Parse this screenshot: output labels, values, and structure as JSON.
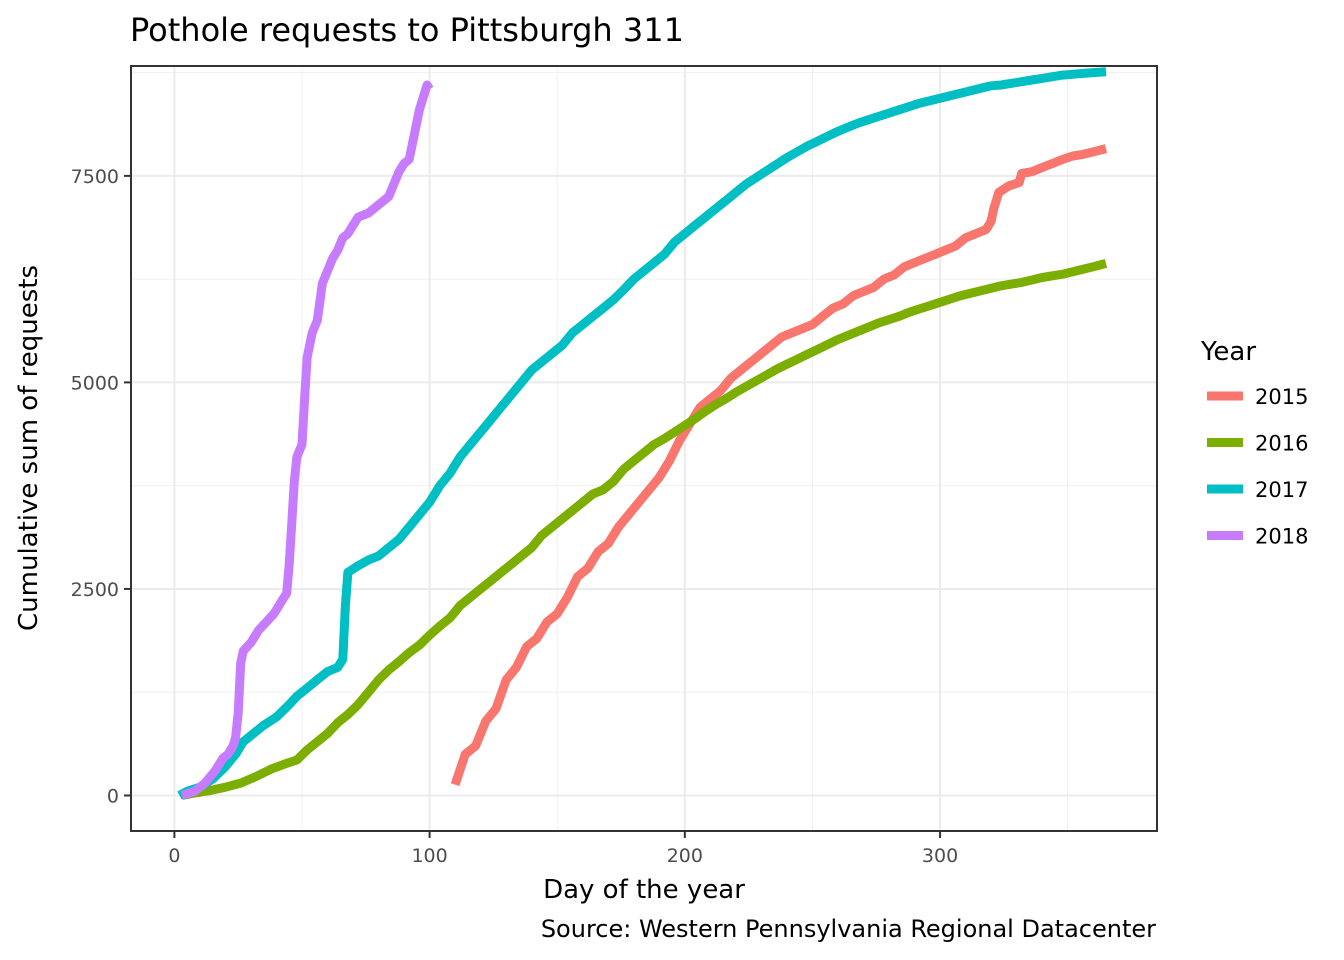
{
  "chart_data": {
    "type": "line",
    "title": "Pothole requests to Pittsburgh 311",
    "xlabel": "Day of the year",
    "ylabel": "Cumulative sum of requests",
    "caption": "Source: Western Pennsylvania Regional Datacenter",
    "xlim": [
      -17,
      385
    ],
    "ylim": [
      -430,
      8830
    ],
    "x_ticks": [
      0,
      100,
      200,
      300
    ],
    "y_ticks": [
      0,
      2500,
      5000,
      7500
    ],
    "x_tick_labels": [
      "0",
      "100",
      "200",
      "300"
    ],
    "y_tick_labels": [
      "0",
      "2500",
      "5000",
      "7500"
    ],
    "grid": true,
    "legend": {
      "title": "Year",
      "position": "right"
    },
    "series": [
      {
        "name": "2015",
        "color": "#F8766D",
        "points": [
          [
            110,
            130
          ],
          [
            114,
            500
          ],
          [
            118,
            600
          ],
          [
            122,
            900
          ],
          [
            126,
            1050
          ],
          [
            130,
            1400
          ],
          [
            134,
            1550
          ],
          [
            138,
            1800
          ],
          [
            142,
            1900
          ],
          [
            146,
            2100
          ],
          [
            150,
            2200
          ],
          [
            154,
            2400
          ],
          [
            158,
            2650
          ],
          [
            162,
            2750
          ],
          [
            166,
            2950
          ],
          [
            170,
            3050
          ],
          [
            174,
            3250
          ],
          [
            178,
            3400
          ],
          [
            182,
            3550
          ],
          [
            186,
            3700
          ],
          [
            190,
            3850
          ],
          [
            194,
            4050
          ],
          [
            198,
            4300
          ],
          [
            202,
            4500
          ],
          [
            206,
            4700
          ],
          [
            210,
            4800
          ],
          [
            214,
            4900
          ],
          [
            218,
            5050
          ],
          [
            222,
            5150
          ],
          [
            226,
            5250
          ],
          [
            230,
            5350
          ],
          [
            234,
            5450
          ],
          [
            238,
            5550
          ],
          [
            242,
            5600
          ],
          [
            246,
            5650
          ],
          [
            250,
            5700
          ],
          [
            254,
            5800
          ],
          [
            258,
            5900
          ],
          [
            262,
            5950
          ],
          [
            266,
            6050
          ],
          [
            270,
            6100
          ],
          [
            274,
            6150
          ],
          [
            278,
            6250
          ],
          [
            282,
            6300
          ],
          [
            286,
            6400
          ],
          [
            290,
            6450
          ],
          [
            294,
            6500
          ],
          [
            298,
            6550
          ],
          [
            302,
            6600
          ],
          [
            306,
            6650
          ],
          [
            310,
            6750
          ],
          [
            314,
            6800
          ],
          [
            318,
            6850
          ],
          [
            320,
            6950
          ],
          [
            321,
            7100
          ],
          [
            323,
            7300
          ],
          [
            327,
            7380
          ],
          [
            331,
            7420
          ],
          [
            332,
            7530
          ],
          [
            336,
            7550
          ],
          [
            340,
            7600
          ],
          [
            344,
            7650
          ],
          [
            348,
            7700
          ],
          [
            352,
            7740
          ],
          [
            356,
            7760
          ],
          [
            360,
            7790
          ],
          [
            365,
            7830
          ]
        ]
      },
      {
        "name": "2016",
        "color": "#7CAE00",
        "points": [
          [
            3,
            0
          ],
          [
            8,
            30
          ],
          [
            14,
            60
          ],
          [
            20,
            100
          ],
          [
            26,
            150
          ],
          [
            32,
            230
          ],
          [
            38,
            320
          ],
          [
            44,
            390
          ],
          [
            48,
            430
          ],
          [
            52,
            550
          ],
          [
            56,
            650
          ],
          [
            60,
            750
          ],
          [
            64,
            880
          ],
          [
            68,
            980
          ],
          [
            72,
            1100
          ],
          [
            76,
            1250
          ],
          [
            80,
            1400
          ],
          [
            84,
            1520
          ],
          [
            88,
            1620
          ],
          [
            92,
            1730
          ],
          [
            96,
            1820
          ],
          [
            100,
            1940
          ],
          [
            104,
            2050
          ],
          [
            108,
            2150
          ],
          [
            112,
            2300
          ],
          [
            116,
            2400
          ],
          [
            120,
            2500
          ],
          [
            124,
            2600
          ],
          [
            128,
            2700
          ],
          [
            132,
            2800
          ],
          [
            136,
            2900
          ],
          [
            140,
            3000
          ],
          [
            144,
            3150
          ],
          [
            148,
            3250
          ],
          [
            152,
            3350
          ],
          [
            156,
            3450
          ],
          [
            160,
            3550
          ],
          [
            164,
            3650
          ],
          [
            168,
            3700
          ],
          [
            172,
            3800
          ],
          [
            176,
            3950
          ],
          [
            180,
            4050
          ],
          [
            184,
            4150
          ],
          [
            188,
            4250
          ],
          [
            192,
            4320
          ],
          [
            196,
            4400
          ],
          [
            200,
            4480
          ],
          [
            204,
            4560
          ],
          [
            208,
            4650
          ],
          [
            212,
            4730
          ],
          [
            216,
            4800
          ],
          [
            220,
            4880
          ],
          [
            224,
            4950
          ],
          [
            228,
            5020
          ],
          [
            232,
            5090
          ],
          [
            236,
            5160
          ],
          [
            240,
            5220
          ],
          [
            244,
            5280
          ],
          [
            248,
            5340
          ],
          [
            252,
            5400
          ],
          [
            256,
            5460
          ],
          [
            260,
            5520
          ],
          [
            264,
            5570
          ],
          [
            268,
            5620
          ],
          [
            272,
            5670
          ],
          [
            276,
            5720
          ],
          [
            280,
            5760
          ],
          [
            284,
            5800
          ],
          [
            288,
            5850
          ],
          [
            292,
            5890
          ],
          [
            296,
            5930
          ],
          [
            300,
            5970
          ],
          [
            304,
            6010
          ],
          [
            308,
            6050
          ],
          [
            312,
            6080
          ],
          [
            316,
            6110
          ],
          [
            320,
            6140
          ],
          [
            324,
            6170
          ],
          [
            328,
            6190
          ],
          [
            332,
            6210
          ],
          [
            336,
            6240
          ],
          [
            340,
            6270
          ],
          [
            344,
            6290
          ],
          [
            348,
            6310
          ],
          [
            352,
            6340
          ],
          [
            356,
            6370
          ],
          [
            360,
            6400
          ],
          [
            365,
            6440
          ]
        ]
      },
      {
        "name": "2017",
        "color": "#00BFC4",
        "points": [
          [
            2,
            0
          ],
          [
            5,
            50
          ],
          [
            10,
            100
          ],
          [
            15,
            200
          ],
          [
            20,
            350
          ],
          [
            24,
            500
          ],
          [
            27,
            650
          ],
          [
            31,
            750
          ],
          [
            35,
            850
          ],
          [
            40,
            950
          ],
          [
            45,
            1100
          ],
          [
            48,
            1200
          ],
          [
            52,
            1300
          ],
          [
            56,
            1400
          ],
          [
            60,
            1500
          ],
          [
            64,
            1550
          ],
          [
            66,
            1650
          ],
          [
            67,
            2300
          ],
          [
            68,
            2700
          ],
          [
            72,
            2780
          ],
          [
            76,
            2850
          ],
          [
            80,
            2900
          ],
          [
            84,
            3000
          ],
          [
            88,
            3100
          ],
          [
            92,
            3250
          ],
          [
            96,
            3400
          ],
          [
            100,
            3550
          ],
          [
            104,
            3750
          ],
          [
            108,
            3900
          ],
          [
            112,
            4100
          ],
          [
            116,
            4250
          ],
          [
            120,
            4400
          ],
          [
            124,
            4550
          ],
          [
            128,
            4700
          ],
          [
            132,
            4850
          ],
          [
            136,
            5000
          ],
          [
            140,
            5150
          ],
          [
            144,
            5250
          ],
          [
            148,
            5350
          ],
          [
            152,
            5450
          ],
          [
            156,
            5600
          ],
          [
            160,
            5700
          ],
          [
            164,
            5800
          ],
          [
            168,
            5900
          ],
          [
            172,
            6000
          ],
          [
            176,
            6120
          ],
          [
            180,
            6250
          ],
          [
            184,
            6350
          ],
          [
            188,
            6450
          ],
          [
            192,
            6550
          ],
          [
            196,
            6700
          ],
          [
            200,
            6800
          ],
          [
            204,
            6900
          ],
          [
            208,
            7000
          ],
          [
            212,
            7100
          ],
          [
            216,
            7200
          ],
          [
            220,
            7300
          ],
          [
            224,
            7400
          ],
          [
            228,
            7480
          ],
          [
            232,
            7560
          ],
          [
            236,
            7640
          ],
          [
            240,
            7720
          ],
          [
            244,
            7790
          ],
          [
            248,
            7860
          ],
          [
            252,
            7920
          ],
          [
            256,
            7980
          ],
          [
            260,
            8040
          ],
          [
            264,
            8090
          ],
          [
            268,
            8140
          ],
          [
            272,
            8180
          ],
          [
            276,
            8220
          ],
          [
            280,
            8260
          ],
          [
            284,
            8300
          ],
          [
            288,
            8340
          ],
          [
            292,
            8380
          ],
          [
            296,
            8410
          ],
          [
            300,
            8440
          ],
          [
            304,
            8470
          ],
          [
            308,
            8500
          ],
          [
            312,
            8530
          ],
          [
            316,
            8560
          ],
          [
            320,
            8590
          ],
          [
            324,
            8600
          ],
          [
            328,
            8620
          ],
          [
            332,
            8640
          ],
          [
            336,
            8660
          ],
          [
            340,
            8680
          ],
          [
            344,
            8700
          ],
          [
            348,
            8720
          ],
          [
            352,
            8730
          ],
          [
            356,
            8740
          ],
          [
            360,
            8750
          ],
          [
            365,
            8760
          ]
        ]
      },
      {
        "name": "2018",
        "color": "#C77CFF",
        "points": [
          [
            3,
            0
          ],
          [
            8,
            50
          ],
          [
            12,
            150
          ],
          [
            16,
            300
          ],
          [
            19,
            450
          ],
          [
            21,
            500
          ],
          [
            23,
            600
          ],
          [
            24,
            700
          ],
          [
            25,
            1000
          ],
          [
            26,
            1600
          ],
          [
            27,
            1750
          ],
          [
            30,
            1850
          ],
          [
            33,
            2000
          ],
          [
            36,
            2100
          ],
          [
            39,
            2200
          ],
          [
            42,
            2350
          ],
          [
            44,
            2450
          ],
          [
            45,
            2800
          ],
          [
            46,
            3300
          ],
          [
            47,
            3800
          ],
          [
            48,
            4100
          ],
          [
            50,
            4250
          ],
          [
            51,
            4800
          ],
          [
            52,
            5300
          ],
          [
            54,
            5600
          ],
          [
            56,
            5750
          ],
          [
            58,
            6200
          ],
          [
            60,
            6350
          ],
          [
            62,
            6500
          ],
          [
            64,
            6600
          ],
          [
            66,
            6750
          ],
          [
            68,
            6800
          ],
          [
            70,
            6900
          ],
          [
            72,
            7000
          ],
          [
            76,
            7050
          ],
          [
            80,
            7150
          ],
          [
            84,
            7250
          ],
          [
            86,
            7400
          ],
          [
            88,
            7550
          ],
          [
            90,
            7650
          ],
          [
            92,
            7700
          ],
          [
            94,
            8000
          ],
          [
            96,
            8300
          ],
          [
            98,
            8500
          ],
          [
            99,
            8600
          ],
          [
            100,
            8550
          ]
        ]
      }
    ]
  }
}
